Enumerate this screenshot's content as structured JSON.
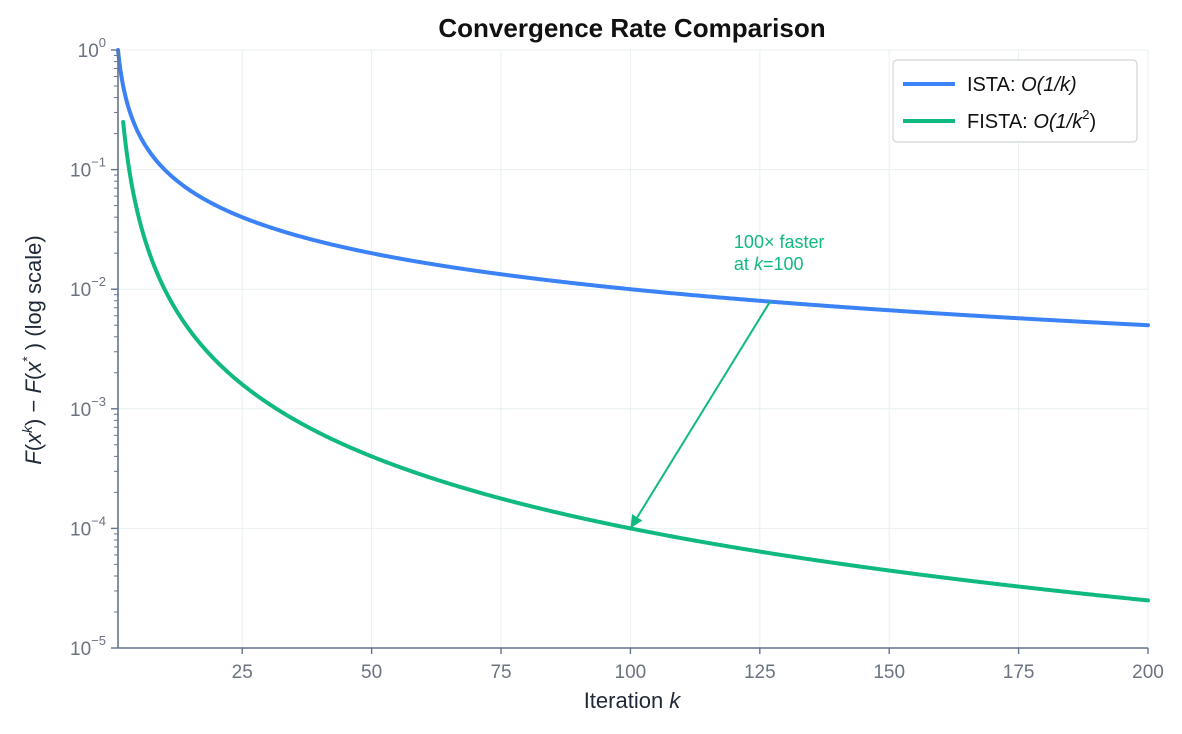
{
  "chart_data": {
    "type": "line",
    "title": "Convergence Rate Comparison",
    "xlabel": "Iteration k",
    "ylabel": "F(x^k) − F(x^*) (log scale)",
    "yscale": "log",
    "xlim": [
      1,
      200
    ],
    "ylim": [
      1e-05,
      1
    ],
    "grid": true,
    "legend_position": "top-right",
    "x_ticks": [
      25,
      50,
      75,
      100,
      125,
      150,
      175,
      200
    ],
    "y_ticks": [
      {
        "value": 1,
        "base": "10",
        "exp": "0"
      },
      {
        "value": 0.1,
        "base": "10",
        "exp": "−1"
      },
      {
        "value": 0.01,
        "base": "10",
        "exp": "−2"
      },
      {
        "value": 0.001,
        "base": "10",
        "exp": "−3"
      },
      {
        "value": 0.0001,
        "base": "10",
        "exp": "−4"
      },
      {
        "value": 1e-05,
        "base": "10",
        "exp": "−5"
      }
    ],
    "series": [
      {
        "name": "ISTA: O(1/k)",
        "legend_prefix": "ISTA: ",
        "rate_text": "O(1/k)",
        "formula": "1/k",
        "power": 1,
        "color": "#3b82f6",
        "k_start": 1,
        "k_end": 200
      },
      {
        "name": "FISTA: O(1/k^2)",
        "legend_prefix": "FISTA: ",
        "rate_text": "O(1/k",
        "rate_sup": "2",
        "rate_close": ")",
        "formula": "1/k^2",
        "power": 2,
        "color": "#10b981",
        "k_start": 2,
        "k_end": 200
      }
    ],
    "annotation": {
      "line1": "100× faster",
      "line2_prefix": "at ",
      "line2_var": "k",
      "line2_suffix": "=100",
      "text_anchor_k": 120,
      "text_anchor_value": 0.0145,
      "tail_k": 127,
      "tail_value": 0.0079,
      "head_k": 100,
      "head_value": 0.0001,
      "color": "#10b981"
    }
  }
}
